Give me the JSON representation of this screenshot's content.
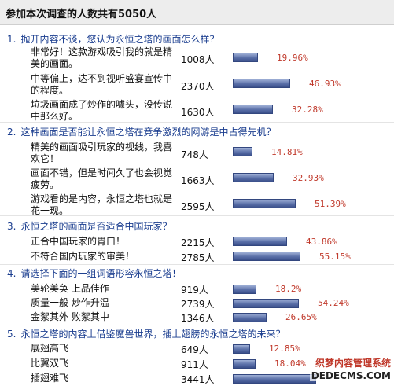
{
  "header": {
    "title": "参加本次调查的人数共有5050人"
  },
  "questions": [
    {
      "number": "1.",
      "title": "抛开内容不谈，您认为永恒之塔的画面怎么样？",
      "options": [
        {
          "text": "非常好！这款游戏吸引我的就是精美的画面。",
          "count": "1008人",
          "percent_label": "19.96%",
          "fraction": 0.1996
        },
        {
          "text": "中等偏上，达不到视听盛宴宣传中的程度。",
          "count": "2370人",
          "percent_label": "46.93%",
          "fraction": 0.4693
        },
        {
          "text": "垃圾画面成了炒作的噱头，没传说中那么好。",
          "count": "1630人",
          "percent_label": "32.28%",
          "fraction": 0.3228
        }
      ]
    },
    {
      "number": "2.",
      "title": "这种画面是否能让永恒之塔在竞争激烈的网游是中占得先机？",
      "options": [
        {
          "text": "精美的画面吸引玩家的视线，我喜欢它！",
          "count": "748人",
          "percent_label": "14.81%",
          "fraction": 0.1481
        },
        {
          "text": "画面不错，但是时间久了也会视觉疲劳。",
          "count": "1663人",
          "percent_label": "32.93%",
          "fraction": 0.3293
        },
        {
          "text": "游戏看的是内容，永恒之塔也就是花一现。",
          "count": "2595人",
          "percent_label": "51.39%",
          "fraction": 0.5139
        }
      ]
    },
    {
      "number": "3.",
      "title": "永恒之塔的画面是否适合中国玩家？",
      "options": [
        {
          "text": "正合中国玩家的胃口！",
          "count": "2215人",
          "percent_label": "43.86%",
          "fraction": 0.4386
        },
        {
          "text": "不符合国内玩家的审美！",
          "count": "2785人",
          "percent_label": "55.15%",
          "fraction": 0.5515
        }
      ]
    },
    {
      "number": "4.",
      "title": "请选择下面的一组词语形容永恒之塔！",
      "options": [
        {
          "text": "美轮美奂  上品佳作",
          "count": "919人",
          "percent_label": "18.2%",
          "fraction": 0.182
        },
        {
          "text": "质量一般  炒作升温",
          "count": "2739人",
          "percent_label": "54.24%",
          "fraction": 0.5424
        },
        {
          "text": "金絮其外  败絮其中",
          "count": "1346人",
          "percent_label": "26.65%",
          "fraction": 0.2665
        }
      ]
    },
    {
      "number": "5.",
      "title": "永恒之塔的内容上借鉴魔兽世界，插上翅膀的永恒之塔的未来？",
      "options": [
        {
          "text": "展翅高飞",
          "count": "649人",
          "percent_label": "12.85%",
          "fraction": 0.1285
        },
        {
          "text": "比翼双飞",
          "count": "911人",
          "percent_label": "18.04%",
          "fraction": 0.1804
        },
        {
          "text": "插翅难飞",
          "count": "3441人",
          "percent_label": "",
          "fraction": 0.6814
        }
      ]
    }
  ],
  "watermark": {
    "line1": "织梦内容管理系统",
    "line2": "DEDECMS.COM"
  },
  "colors": {
    "question_title": "#1a3d8f",
    "percent": "#c0392b",
    "bar": "#4a5f9a",
    "header_bg": "#ededed"
  }
}
